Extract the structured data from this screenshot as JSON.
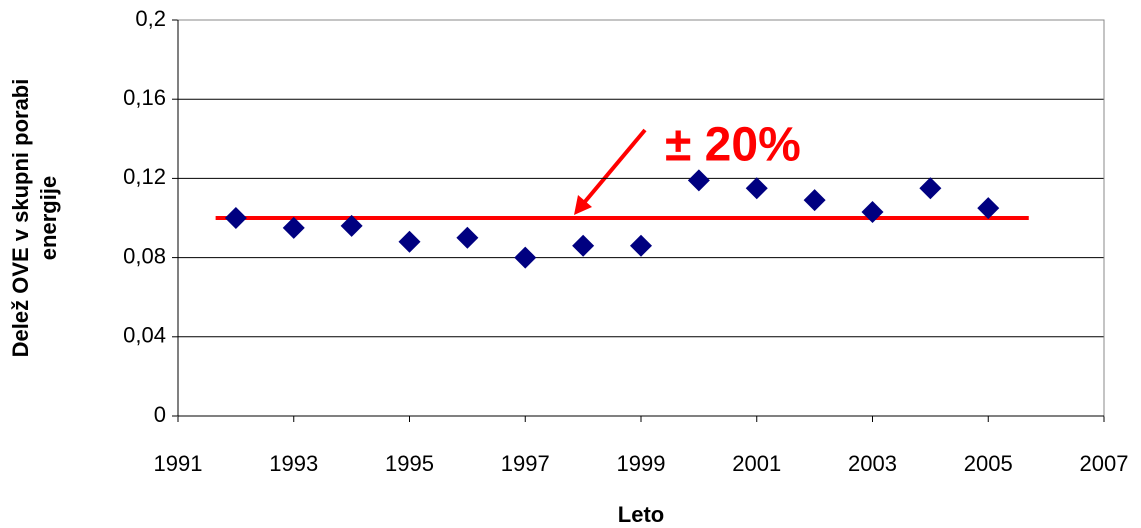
{
  "chart_data": {
    "type": "scatter",
    "xlabel": "Leto",
    "ylabel": [
      "Delež OVE v skupni porabi",
      "energije"
    ],
    "x": [
      1992,
      1993,
      1994,
      1995,
      1996,
      1997,
      1998,
      1999,
      2000,
      2001,
      2002,
      2003,
      2004,
      2005
    ],
    "values": [
      0.1,
      0.095,
      0.096,
      0.088,
      0.09,
      0.08,
      0.086,
      0.086,
      0.119,
      0.115,
      0.109,
      0.103,
      0.115,
      0.105
    ],
    "color": "#000080",
    "xlim": [
      1991,
      2007
    ],
    "xticks": [
      1991,
      1993,
      1995,
      1997,
      1999,
      2001,
      2003,
      2005,
      2007
    ],
    "ylim": [
      0,
      0.2
    ],
    "yticks": [
      0,
      {
        "value": 0.04,
        "label": "0,04"
      },
      {
        "value": 0.08,
        "label": "0,08"
      },
      {
        "value": 0.12,
        "label": "0,12"
      },
      {
        "value": 0.16,
        "label": "0,16"
      },
      {
        "value": 0.2,
        "label": "0,2"
      }
    ],
    "grid": true,
    "reference_line": {
      "value": 0.1,
      "x": [
        1991.65,
        2005.7
      ],
      "color": "#ff0000"
    },
    "annotation": "± 20%"
  }
}
